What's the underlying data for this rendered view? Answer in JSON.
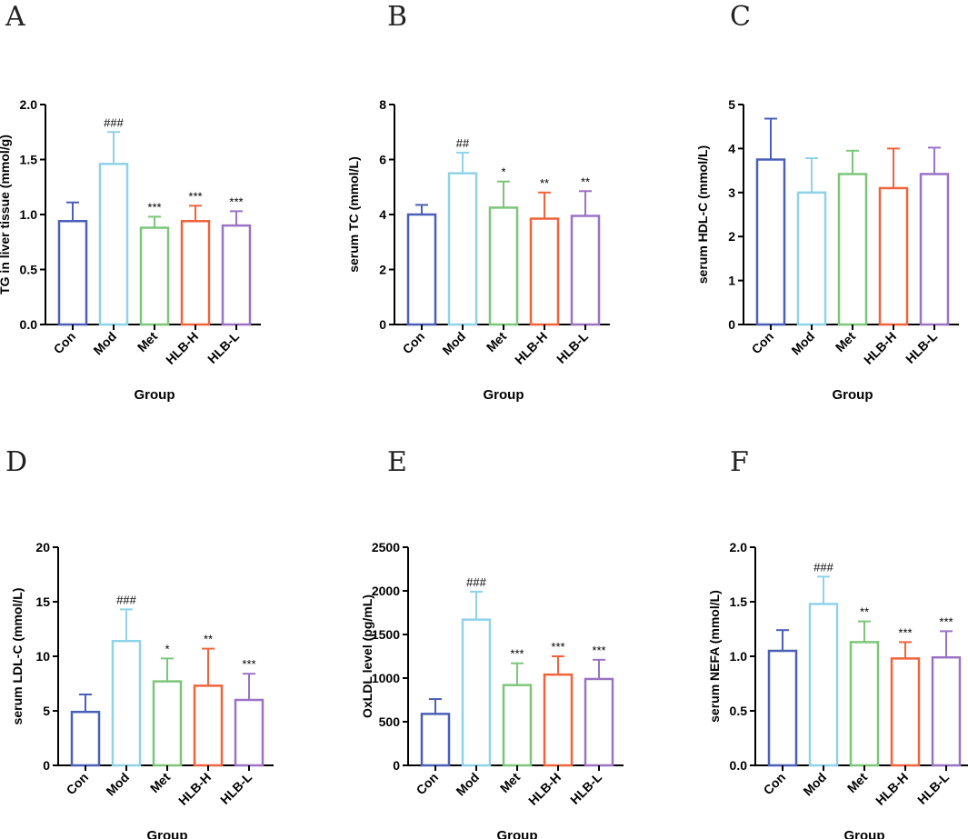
{
  "colors": {
    "Con": "#4a5fb8",
    "Mod": "#8fd3e8",
    "Met": "#7cc67a",
    "HLB-H": "#f0643c",
    "HLB-L": "#9b72c4",
    "axis": "#000000"
  },
  "chart_data": [
    {
      "type": "bar",
      "panel": "A",
      "title": "",
      "categories": [
        "Con",
        "Mod",
        "Met",
        "HLB-H",
        "HLB-L"
      ],
      "values": [
        0.94,
        1.46,
        0.88,
        0.94,
        0.9
      ],
      "errors": [
        0.17,
        0.29,
        0.1,
        0.14,
        0.13
      ],
      "significance": [
        "",
        "###",
        "***",
        "***",
        "***"
      ],
      "ylabel": "TG in liver tissue (mmol/g)",
      "xlabel": "Group",
      "ylim": [
        0,
        2.0
      ],
      "yticks": [
        "0.0",
        "0.5",
        "1.0",
        "1.5",
        "2.0"
      ]
    },
    {
      "type": "bar",
      "panel": "B",
      "title": "",
      "categories": [
        "Con",
        "Mod",
        "Met",
        "HLB-H",
        "HLB-L"
      ],
      "values": [
        4.0,
        5.5,
        4.25,
        3.85,
        3.95
      ],
      "errors": [
        0.35,
        0.75,
        0.95,
        0.95,
        0.9
      ],
      "significance": [
        "",
        "##",
        "*",
        "**",
        "**"
      ],
      "ylabel": "serum TC (mmol/L)",
      "xlabel": "Group",
      "ylim": [
        0,
        8
      ],
      "yticks": [
        "0",
        "2",
        "4",
        "6",
        "8"
      ]
    },
    {
      "type": "bar",
      "panel": "C",
      "title": "",
      "categories": [
        "Con",
        "Mod",
        "Met",
        "HLB-H",
        "HLB-L"
      ],
      "values": [
        3.75,
        3.0,
        3.42,
        3.1,
        3.42
      ],
      "errors": [
        0.93,
        0.78,
        0.53,
        0.9,
        0.6
      ],
      "significance": [
        "",
        "",
        "",
        "",
        ""
      ],
      "ylabel": "serum HDL-C (mmol/L)",
      "xlabel": "Group",
      "ylim": [
        0,
        5
      ],
      "yticks": [
        "0",
        "1",
        "2",
        "3",
        "4",
        "5"
      ]
    },
    {
      "type": "bar",
      "panel": "D",
      "title": "",
      "categories": [
        "Con",
        "Mod",
        "Met",
        "HLB-H",
        "HLB-L"
      ],
      "values": [
        4.9,
        11.4,
        7.7,
        7.3,
        6.0
      ],
      "errors": [
        1.6,
        2.9,
        2.1,
        3.4,
        2.4
      ],
      "significance": [
        "",
        "###",
        "*",
        "**",
        "***"
      ],
      "ylabel": "serum LDL-C (mmol/L)",
      "xlabel": "Group",
      "ylim": [
        0,
        20
      ],
      "yticks": [
        "0",
        "5",
        "10",
        "15",
        "20"
      ]
    },
    {
      "type": "bar",
      "panel": "E",
      "title": "",
      "categories": [
        "Con",
        "Mod",
        "Met",
        "HLB-H",
        "HLB-L"
      ],
      "values": [
        590,
        1670,
        920,
        1040,
        990
      ],
      "errors": [
        170,
        320,
        250,
        210,
        220
      ],
      "significance": [
        "",
        "###",
        "***",
        "***",
        "***"
      ],
      "ylabel": "OxLDL level (pg/mL)",
      "xlabel": "Group",
      "ylim": [
        0,
        2500
      ],
      "yticks": [
        "0",
        "500",
        "1000",
        "1500",
        "2000",
        "2500"
      ]
    },
    {
      "type": "bar",
      "panel": "F",
      "title": "",
      "categories": [
        "Con",
        "Mod",
        "Met",
        "HLB-H",
        "HLB-L"
      ],
      "values": [
        1.05,
        1.48,
        1.13,
        0.98,
        0.99
      ],
      "errors": [
        0.19,
        0.25,
        0.19,
        0.15,
        0.24
      ],
      "significance": [
        "",
        "###",
        "**",
        "***",
        "***"
      ],
      "ylabel": "serum NEFA (mmol/L)",
      "xlabel": "Group",
      "ylim": [
        0,
        2.0
      ],
      "yticks": [
        "0.0",
        "0.5",
        "1.0",
        "1.5",
        "2.0"
      ]
    }
  ]
}
